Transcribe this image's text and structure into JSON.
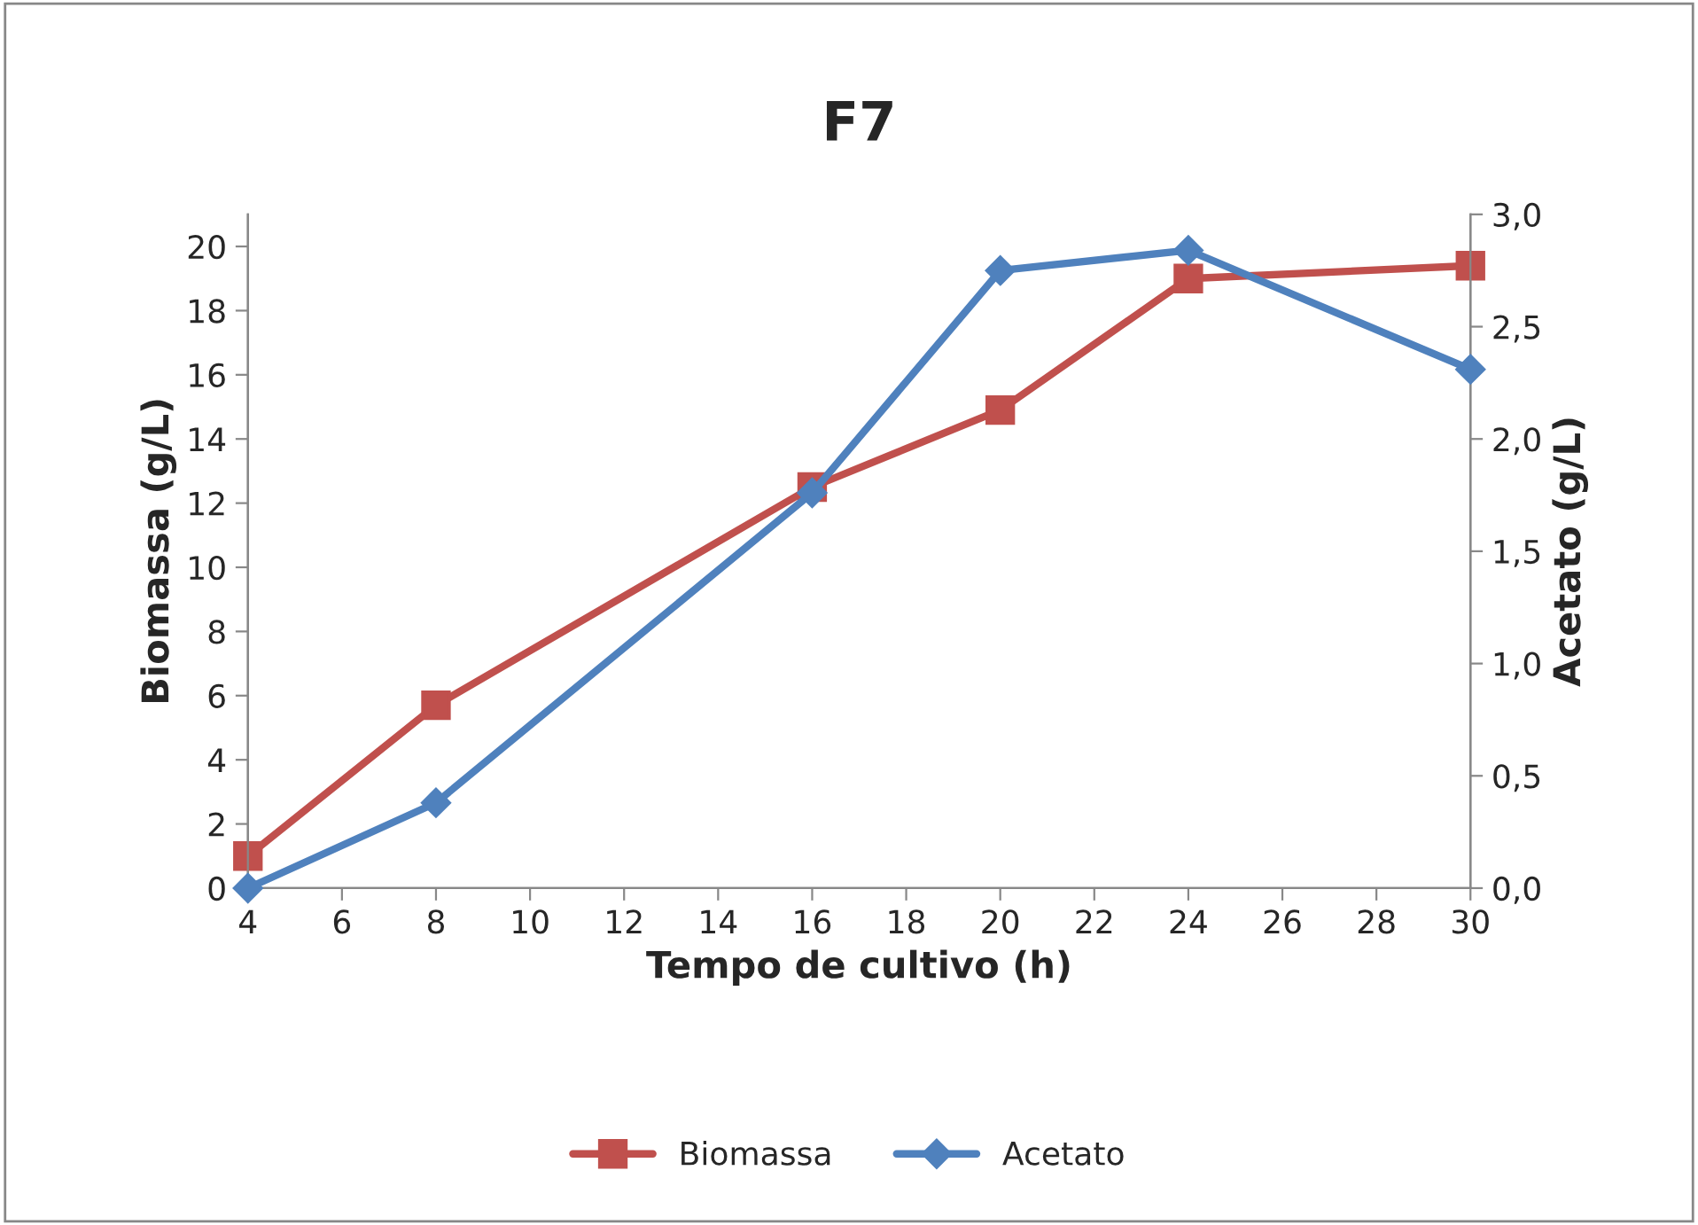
{
  "chart_data": {
    "type": "line",
    "title": "F7",
    "xlabel": "Tempo de cultivo (h)",
    "ylabel": "Biomassa (g/L)",
    "y2label": "Acetato (g/L)",
    "x": [
      4,
      8,
      16,
      20,
      24,
      30
    ],
    "series": [
      {
        "name": "Biomassa",
        "color": "#c0504d",
        "marker": "square",
        "values": [
          1.0,
          5.7,
          12.5,
          14.9,
          19.0,
          19.4
        ]
      },
      {
        "name": "Acetato",
        "color": "#4f81bd",
        "marker": "diamond",
        "axis": "y2",
        "values": [
          0.0,
          0.38,
          1.76,
          2.75,
          2.84,
          2.31
        ]
      }
    ],
    "xlim": [
      4,
      30
    ],
    "xticks": [
      4,
      6,
      8,
      10,
      12,
      14,
      16,
      18,
      20,
      22,
      24,
      26,
      28,
      30
    ],
    "ylim": [
      0,
      21
    ],
    "yticks": [
      0,
      2,
      4,
      6,
      8,
      10,
      12,
      14,
      16,
      18,
      20
    ],
    "y2lim": [
      0,
      3
    ],
    "y2ticks": [
      {
        "value": 0,
        "label": "0,0"
      },
      {
        "value": 0.5,
        "label": "0,5"
      },
      {
        "value": 1,
        "label": "1,0"
      },
      {
        "value": 1.5,
        "label": "1,5"
      },
      {
        "value": 2,
        "label": "2,0"
      },
      {
        "value": 2.5,
        "label": "2,5"
      },
      {
        "value": 3,
        "label": "3,0"
      }
    ],
    "legend": "bottom",
    "grid": false,
    "line_style": "solid"
  }
}
